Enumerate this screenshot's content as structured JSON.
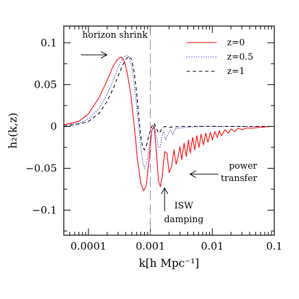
{
  "chart_data": {
    "type": "line",
    "xlabel": "k[h Mpc⁻¹]",
    "ylabel": "h₂(k,z)",
    "x_scale": "log",
    "xlim": [
      4e-05,
      0.1
    ],
    "ylim": [
      -0.13,
      0.12
    ],
    "x_ticks": [
      {
        "value": 0.0001,
        "label": "0.0001"
      },
      {
        "value": 0.001,
        "label": "0.001"
      },
      {
        "value": 0.01,
        "label": "0.01"
      },
      {
        "value": 0.1,
        "label": "0.1"
      }
    ],
    "y_ticks": [
      {
        "value": 0.1,
        "label": "0.1"
      },
      {
        "value": 0.05,
        "label": "0.05"
      },
      {
        "value": 0,
        "label": "0"
      },
      {
        "value": -0.05,
        "label": "−0.05"
      },
      {
        "value": -0.1,
        "label": "−0.1"
      }
    ],
    "vertical_reference_line": {
      "x": 0.001,
      "style": "long-dash",
      "color": "#888888"
    },
    "legend_position": "top-right",
    "series": [
      {
        "name": "z=0",
        "color": "#ff0000",
        "style": "solid",
        "points": [
          [
            4e-05,
            0.002
          ],
          [
            7e-05,
            0.006
          ],
          [
            0.0001,
            0.015
          ],
          [
            0.00015,
            0.035
          ],
          [
            0.0002,
            0.055
          ],
          [
            0.00025,
            0.072
          ],
          [
            0.0003,
            0.081
          ],
          [
            0.00034,
            0.083
          ],
          [
            0.00038,
            0.078
          ],
          [
            0.00042,
            0.065
          ],
          [
            0.00048,
            0.04
          ],
          [
            0.00055,
            0.0
          ],
          [
            0.00062,
            -0.04
          ],
          [
            0.0007,
            -0.068
          ],
          [
            0.00078,
            -0.077
          ],
          [
            0.00086,
            -0.07
          ],
          [
            0.00095,
            -0.04
          ],
          [
            0.00105,
            -0.005
          ],
          [
            0.00115,
            0.0
          ],
          [
            0.00125,
            -0.03
          ],
          [
            0.00135,
            -0.065
          ],
          [
            0.00145,
            -0.072
          ],
          [
            0.00155,
            -0.06
          ],
          [
            0.0017,
            -0.03
          ],
          [
            0.00185,
            -0.032
          ],
          [
            0.002,
            -0.055
          ],
          [
            0.0022,
            -0.048
          ],
          [
            0.0024,
            -0.028
          ],
          [
            0.0026,
            -0.045
          ],
          [
            0.0028,
            -0.036
          ],
          [
            0.003,
            -0.024
          ],
          [
            0.0032,
            -0.04
          ],
          [
            0.0035,
            -0.02
          ],
          [
            0.0038,
            -0.036
          ],
          [
            0.0041,
            -0.016
          ],
          [
            0.0044,
            -0.032
          ],
          [
            0.0048,
            -0.013
          ],
          [
            0.0052,
            -0.028
          ],
          [
            0.0056,
            -0.011
          ],
          [
            0.0061,
            -0.025
          ],
          [
            0.0066,
            -0.009
          ],
          [
            0.0072,
            -0.022
          ],
          [
            0.0078,
            -0.008
          ],
          [
            0.0085,
            -0.019
          ],
          [
            0.0093,
            -0.007
          ],
          [
            0.01,
            -0.016
          ],
          [
            0.011,
            -0.006
          ],
          [
            0.012,
            -0.013
          ],
          [
            0.013,
            -0.005
          ],
          [
            0.014,
            -0.011
          ],
          [
            0.016,
            -0.004
          ],
          [
            0.018,
            -0.008
          ],
          [
            0.02,
            -0.003
          ],
          [
            0.023,
            -0.006
          ],
          [
            0.026,
            -0.002
          ],
          [
            0.03,
            -0.004
          ],
          [
            0.035,
            -0.002
          ],
          [
            0.045,
            -0.002
          ],
          [
            0.06,
            -0.001
          ],
          [
            0.085,
            0.0
          ]
        ]
      },
      {
        "name": "z=0.5",
        "color": "#3333cc",
        "style": "dotted",
        "points": [
          [
            4e-05,
            0.001
          ],
          [
            7e-05,
            0.004
          ],
          [
            0.0001,
            0.009
          ],
          [
            0.00015,
            0.022
          ],
          [
            0.0002,
            0.038
          ],
          [
            0.00025,
            0.055
          ],
          [
            0.0003,
            0.07
          ],
          [
            0.00035,
            0.08
          ],
          [
            0.0004,
            0.085
          ],
          [
            0.00045,
            0.083
          ],
          [
            0.0005,
            0.072
          ],
          [
            0.00055,
            0.05
          ],
          [
            0.0006,
            0.025
          ],
          [
            0.00065,
            0.0
          ],
          [
            0.0007,
            -0.025
          ],
          [
            0.00075,
            -0.042
          ],
          [
            0.0008,
            -0.05
          ],
          [
            0.00087,
            -0.044
          ],
          [
            0.00095,
            -0.025
          ],
          [
            0.00105,
            -0.005
          ],
          [
            0.00115,
            0.002
          ],
          [
            0.00125,
            -0.012
          ],
          [
            0.00135,
            -0.025
          ],
          [
            0.00145,
            -0.024
          ],
          [
            0.00155,
            -0.01
          ],
          [
            0.00165,
            -0.006
          ],
          [
            0.00175,
            -0.016
          ],
          [
            0.0019,
            -0.01
          ],
          [
            0.0021,
            -0.004
          ],
          [
            0.0023,
            -0.01
          ],
          [
            0.0025,
            -0.003
          ],
          [
            0.003,
            -0.002
          ],
          [
            0.004,
            -0.001
          ],
          [
            0.006,
            0.0
          ],
          [
            0.01,
            0.0
          ],
          [
            0.03,
            0.0
          ],
          [
            0.085,
            0.0
          ]
        ]
      },
      {
        "name": "z=1",
        "color": "#000000",
        "style": "dashed",
        "points": [
          [
            4e-05,
            0.0
          ],
          [
            7e-05,
            0.003
          ],
          [
            0.0001,
            0.006
          ],
          [
            0.00015,
            0.016
          ],
          [
            0.0002,
            0.03
          ],
          [
            0.00025,
            0.045
          ],
          [
            0.0003,
            0.06
          ],
          [
            0.00035,
            0.072
          ],
          [
            0.0004,
            0.08
          ],
          [
            0.00045,
            0.084
          ],
          [
            0.0005,
            0.08
          ],
          [
            0.00055,
            0.064
          ],
          [
            0.0006,
            0.04
          ],
          [
            0.00065,
            0.012
          ],
          [
            0.0007,
            -0.012
          ],
          [
            0.00075,
            -0.025
          ],
          [
            0.0008,
            -0.028
          ],
          [
            0.00087,
            -0.022
          ],
          [
            0.00095,
            -0.01
          ],
          [
            0.00105,
            0.0
          ],
          [
            0.00115,
            0.004
          ],
          [
            0.00125,
            -0.002
          ],
          [
            0.00135,
            -0.008
          ],
          [
            0.00145,
            -0.006
          ],
          [
            0.00155,
            -0.002
          ],
          [
            0.0017,
            0.0
          ],
          [
            0.002,
            -0.001
          ],
          [
            0.003,
            0.0
          ],
          [
            0.01,
            0.0
          ],
          [
            0.085,
            0.0
          ]
        ]
      }
    ],
    "annotations": [
      {
        "text": "horizon shrink",
        "arrow": "right"
      },
      {
        "text": "power",
        "arrow": "left"
      },
      {
        "text": "transfer"
      },
      {
        "text": "ISW",
        "arrow": "up"
      },
      {
        "text": "damping"
      }
    ]
  }
}
